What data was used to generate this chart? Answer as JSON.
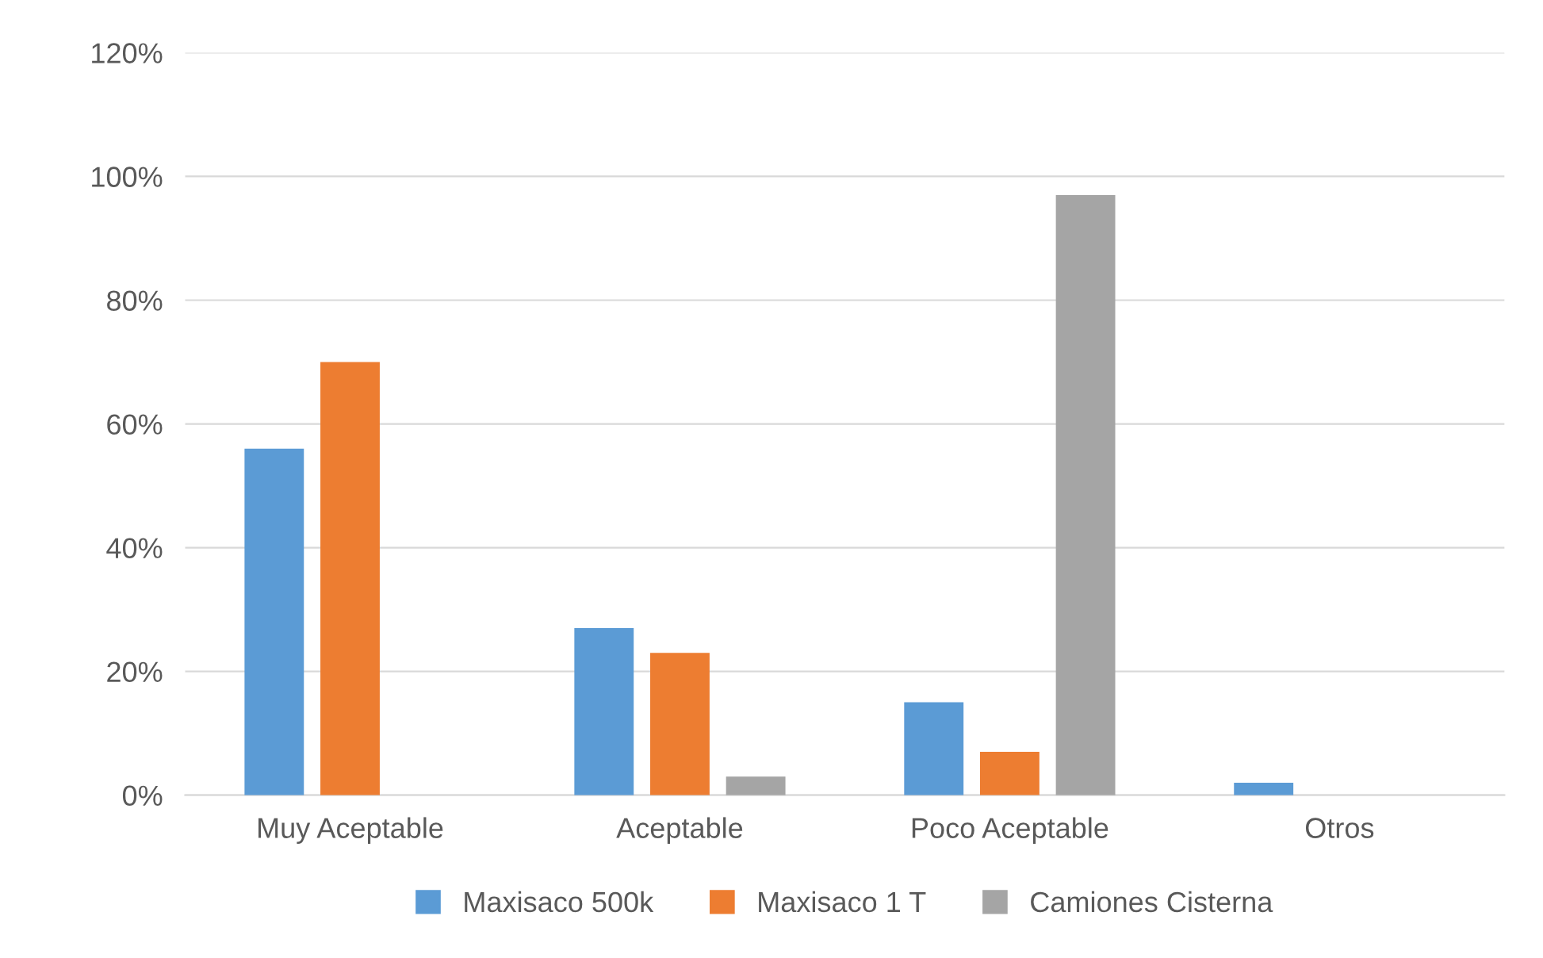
{
  "chart_data": {
    "type": "bar",
    "categories": [
      "Muy Aceptable",
      "Aceptable",
      "Poco Aceptable",
      "Otros"
    ],
    "series": [
      {
        "name": "Maxisaco 500k",
        "color": "#5b9bd5",
        "values": [
          56,
          27,
          15,
          2
        ]
      },
      {
        "name": "Maxisaco 1 T",
        "color": "#ed7d31",
        "values": [
          70,
          23,
          7,
          0
        ]
      },
      {
        "name": "Camiones Cisterna",
        "color": "#a5a5a5",
        "values": [
          0,
          3,
          97,
          0
        ]
      }
    ],
    "ylim": [
      0,
      120
    ],
    "yticks": [
      {
        "value": 0,
        "label": "0%"
      },
      {
        "value": 20,
        "label": "20%"
      },
      {
        "value": 40,
        "label": "40%"
      },
      {
        "value": 60,
        "label": "60%"
      },
      {
        "value": 80,
        "label": "80%"
      },
      {
        "value": 100,
        "label": "100%"
      },
      {
        "value": 120,
        "label": "120%"
      }
    ],
    "grid": "y",
    "legend": "bottom"
  }
}
